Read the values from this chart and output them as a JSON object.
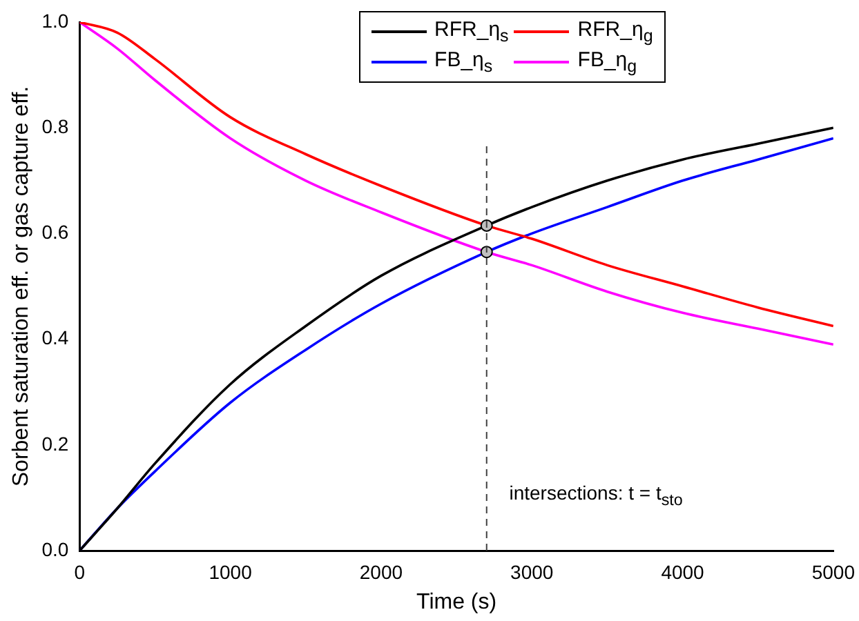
{
  "chart_data": {
    "type": "line",
    "xlabel": "Time (s)",
    "ylabel": "Sorbent saturation eff. or gas capture eff.",
    "xlim": [
      0,
      5000
    ],
    "ylim": [
      0,
      1
    ],
    "xticks": [
      0,
      1000,
      2000,
      3000,
      4000,
      5000
    ],
    "yticks": [
      {
        "value": 0,
        "label": "0.0"
      },
      {
        "value": 0.2,
        "label": "0.2"
      },
      {
        "value": 0.4,
        "label": "0.4"
      },
      {
        "value": 0.6,
        "label": "0.6"
      },
      {
        "value": 0.8,
        "label": "0.8"
      },
      {
        "value": 1,
        "label": "1.0"
      }
    ],
    "grid": false,
    "legend": "top",
    "marker": "none",
    "line_style": "solid",
    "series": [
      {
        "name": "RFR_η$_{s}$",
        "color": "#000000",
        "x": [
          0,
          250,
          500,
          1000,
          1500,
          2000,
          2700,
          3000,
          3500,
          4000,
          4500,
          5000
        ],
        "values": [
          0,
          0.08,
          0.165,
          0.315,
          0.425,
          0.52,
          0.615,
          0.65,
          0.7,
          0.74,
          0.77,
          0.8
        ]
      },
      {
        "name": "RFR_η$_{g}$",
        "color": "#ff0000",
        "x": [
          0,
          250,
          500,
          1000,
          1500,
          2000,
          2700,
          3000,
          3500,
          4000,
          4500,
          5000
        ],
        "values": [
          1,
          0.98,
          0.93,
          0.82,
          0.75,
          0.69,
          0.615,
          0.59,
          0.54,
          0.5,
          0.46,
          0.425
        ]
      },
      {
        "name": "FB_η$_{s}$",
        "color": "#0000ff",
        "x": [
          0,
          250,
          500,
          1000,
          1500,
          2000,
          2700,
          3000,
          3500,
          4000,
          4500,
          5000
        ],
        "values": [
          0,
          0.08,
          0.15,
          0.28,
          0.38,
          0.467,
          0.565,
          0.6,
          0.65,
          0.7,
          0.74,
          0.78
        ]
      },
      {
        "name": "FB_η$_{g}$",
        "color": "#ff00ff",
        "x": [
          0,
          250,
          500,
          1000,
          1500,
          2000,
          2700,
          3000,
          3500,
          4000,
          4500,
          5000
        ],
        "values": [
          1,
          0.95,
          0.89,
          0.78,
          0.7,
          0.64,
          0.565,
          0.54,
          0.49,
          0.45,
          0.42,
          0.39
        ]
      },
      {
        "type": "scatter",
        "color": "#c0c0c0",
        "marker": "circle",
        "x": [
          2700,
          2700
        ],
        "values": [
          0.615,
          0.565
        ]
      }
    ],
    "ref_lines": [
      {
        "axis": "x",
        "value": 2700,
        "line_style": "dashed",
        "color": "#404040"
      }
    ],
    "annotations": [
      "intersections: t = t$_{sto}$"
    ]
  }
}
